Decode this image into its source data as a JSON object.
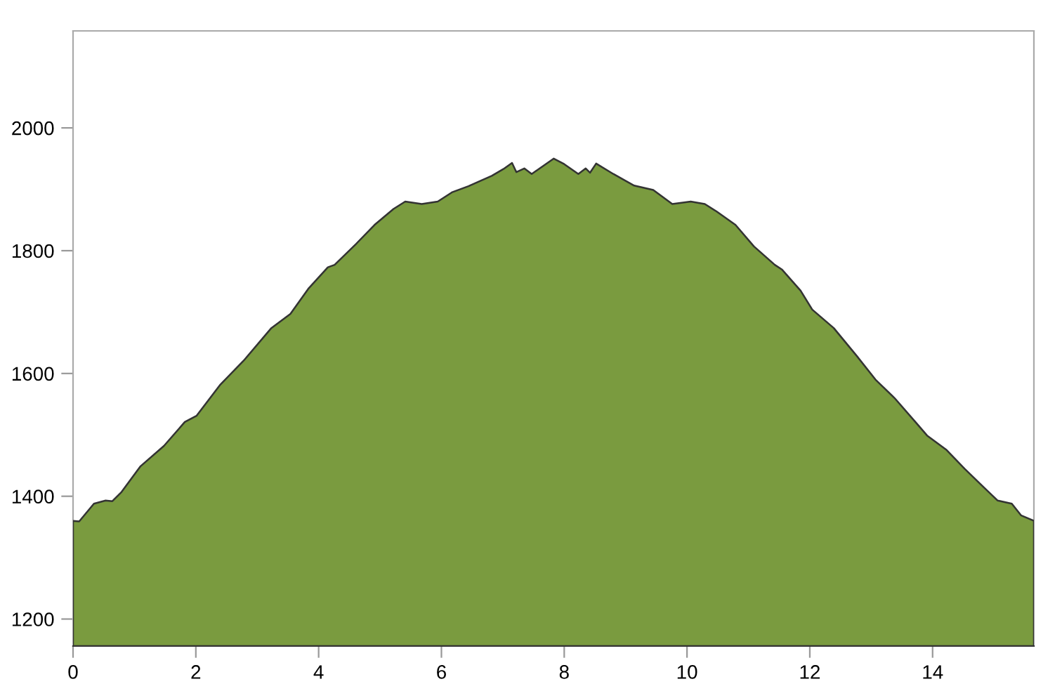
{
  "chart_data": {
    "type": "area",
    "x": [
      0,
      0.1,
      0.34,
      0.53,
      0.64,
      0.79,
      1.1,
      1.48,
      1.82,
      2.01,
      2.4,
      2.78,
      3.23,
      3.54,
      3.84,
      4.15,
      4.26,
      4.61,
      4.91,
      5.22,
      5.41,
      5.68,
      5.94,
      6.17,
      6.44,
      6.82,
      7.01,
      7.15,
      7.22,
      7.35,
      7.47,
      7.83,
      8.0,
      8.23,
      8.35,
      8.42,
      8.52,
      8.8,
      9.14,
      9.45,
      9.76,
      10.06,
      10.29,
      10.48,
      10.79,
      11.09,
      11.43,
      11.55,
      11.85,
      12.04,
      12.39,
      12.77,
      13.07,
      13.38,
      13.72,
      13.91,
      14.22,
      14.52,
      14.83,
      15.06,
      15.29,
      15.44,
      15.65
    ],
    "series": [
      {
        "color": "#7a9b3f",
        "values": [
          1360,
          1359,
          1388,
          1393,
          1392,
          1407,
          1449,
          1482,
          1521,
          1531,
          1582,
          1621,
          1674,
          1697,
          1739,
          1773,
          1777,
          1811,
          1842,
          1868,
          1880,
          1876,
          1880,
          1895,
          1905,
          1922,
          1933,
          1943,
          1928,
          1934,
          1925,
          1950,
          1941,
          1925,
          1934,
          1927,
          1942,
          1925,
          1906,
          1899,
          1876,
          1880,
          1876,
          1864,
          1842,
          1807,
          1777,
          1769,
          1735,
          1704,
          1674,
          1628,
          1590,
          1560,
          1521,
          1499,
          1476,
          1445,
          1415,
          1393,
          1388,
          1369,
          1360
        ]
      }
    ],
    "xlim": [
      0,
      15.65
    ],
    "ylim": [
      1156,
      2158
    ],
    "xticks": [
      0,
      2,
      4,
      6,
      8,
      10,
      12,
      14
    ],
    "yticks": [
      1200,
      1400,
      1600,
      1800,
      2000
    ],
    "grid": false,
    "legend": false
  }
}
